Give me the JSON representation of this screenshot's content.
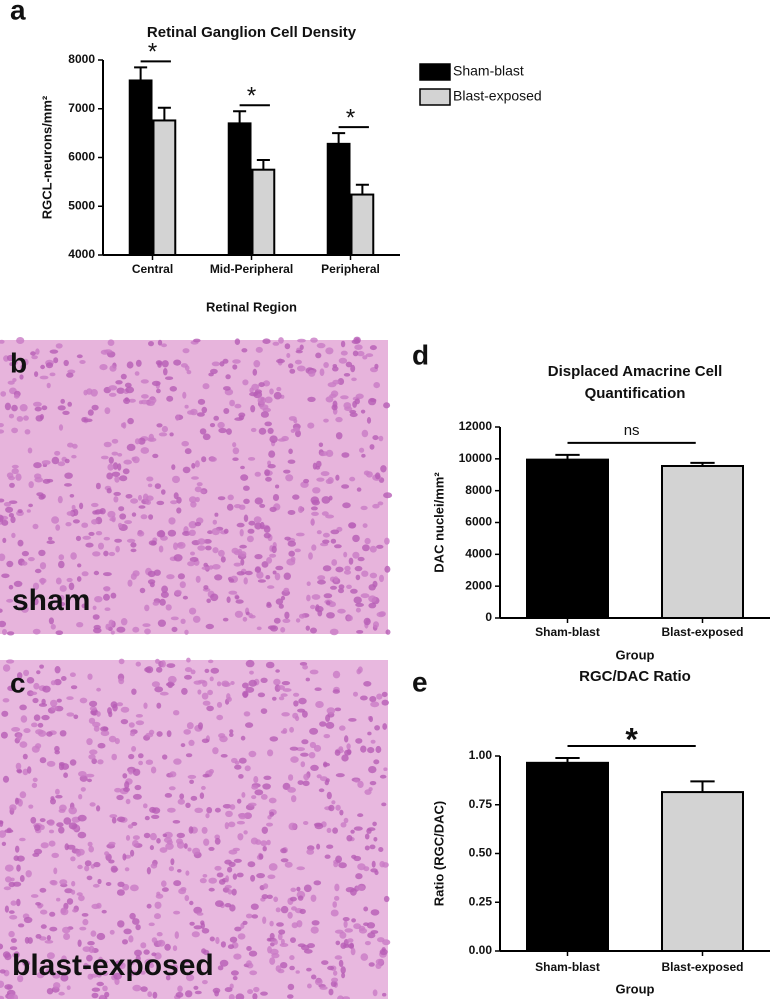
{
  "chart_data": [
    {
      "panel": "a",
      "type": "bar",
      "title": "Retinal Ganglion Cell Density",
      "xlabel": "Retinal Region",
      "ylabel": "RGCL-neurons/mm²",
      "categories": [
        "Central",
        "Mid-Peripheral",
        "Peripheral"
      ],
      "series": [
        {
          "name": "Sham-blast",
          "color": "#000000",
          "values": [
            7580,
            6700,
            6280
          ],
          "errors": [
            270,
            250,
            220
          ]
        },
        {
          "name": "Blast-exposed",
          "color": "#d3d3d3",
          "values": [
            6760,
            5750,
            5240
          ],
          "errors": [
            260,
            200,
            200
          ]
        }
      ],
      "significance": [
        "*",
        "*",
        "*"
      ],
      "ylim": [
        4000,
        8000
      ],
      "yticks": [
        4000,
        5000,
        6000,
        7000,
        8000
      ],
      "legend": "right"
    },
    {
      "panel": "d",
      "type": "bar",
      "title": [
        "Displaced Amacrine Cell",
        "Quantification"
      ],
      "xlabel": "Group",
      "ylabel": "DAC  nuclei/mm²",
      "categories": [
        "Sham-blast",
        "Blast-exposed"
      ],
      "colors": [
        "#000000",
        "#d3d3d3"
      ],
      "values": [
        9950,
        9550
      ],
      "errors": [
        300,
        200
      ],
      "significance": "ns",
      "ylim": [
        0,
        12000
      ],
      "yticks": [
        0,
        2000,
        4000,
        6000,
        8000,
        10000,
        12000
      ]
    },
    {
      "panel": "e",
      "type": "bar",
      "title": [
        "RGC/DAC Ratio"
      ],
      "xlabel": "Group",
      "ylabel": "Ratio  (RGC/DAC)",
      "categories": [
        "Sham-blast",
        "Blast-exposed"
      ],
      "colors": [
        "#000000",
        "#d3d3d3"
      ],
      "values": [
        0.965,
        0.815
      ],
      "errors": [
        0.025,
        0.055
      ],
      "significance": "*",
      "ylim": [
        0,
        1
      ],
      "yticks": [
        {
          "value": 0,
          "label": "0.00"
        },
        {
          "value": 0.25,
          "label": "0.25"
        },
        {
          "value": 0.5,
          "label": "0.50"
        },
        {
          "value": 0.75,
          "label": "0.75"
        },
        {
          "value": 1,
          "label": "1.00"
        }
      ]
    }
  ],
  "images": [
    {
      "panel": "b",
      "label": "sham"
    },
    {
      "panel": "c",
      "label": "blast-exposed"
    }
  ]
}
